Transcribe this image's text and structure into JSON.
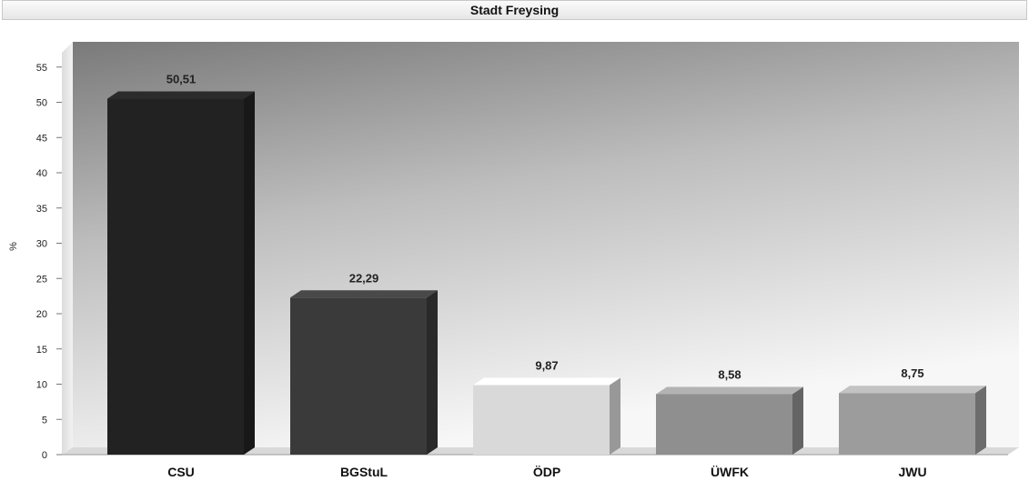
{
  "chart_data": {
    "type": "bar",
    "title": "Stadt Freysing",
    "ylabel": "%",
    "xlabel": "",
    "categories": [
      "CSU",
      "BGStuL",
      "ÖDP",
      "ÜWFK",
      "JWU"
    ],
    "values": [
      50.51,
      22.29,
      9.87,
      8.58,
      8.75
    ],
    "value_labels": [
      "50,51",
      "22,29",
      "9,87",
      "8,58",
      "8,75"
    ],
    "bar_colors": [
      "#222222",
      "#3a3a3a",
      "#d9d9d9",
      "#8f8f8f",
      "#9c9c9c"
    ],
    "yticks": [
      0,
      5,
      10,
      15,
      20,
      25,
      30,
      35,
      40,
      45,
      50,
      55
    ],
    "ylim": [
      0,
      55
    ],
    "grid": false,
    "legend": "none"
  }
}
